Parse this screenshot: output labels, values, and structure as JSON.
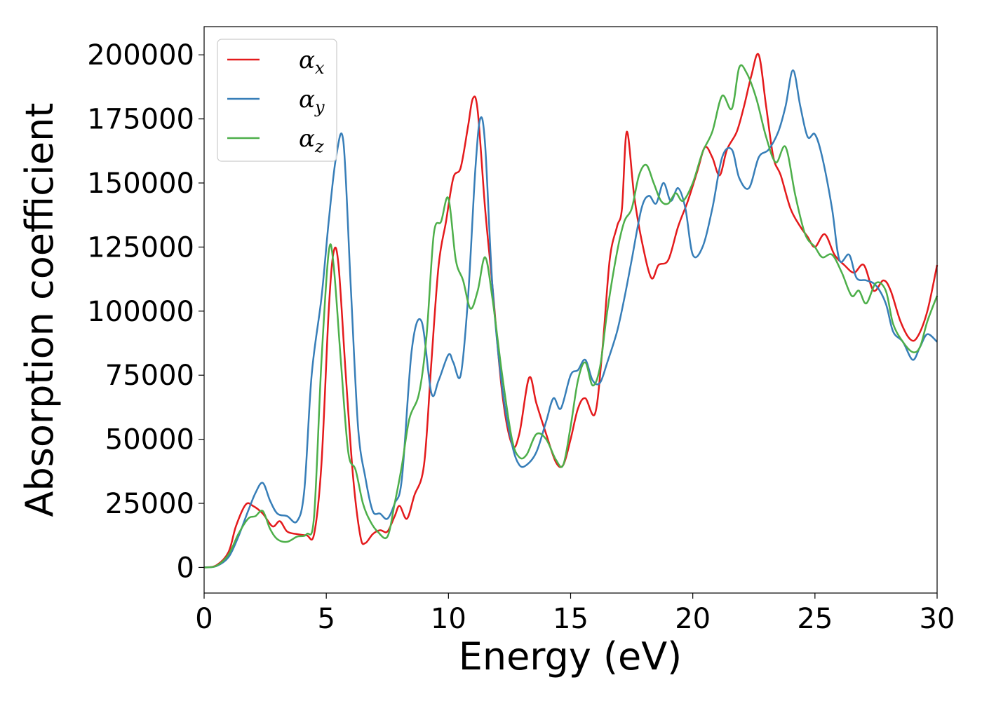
{
  "chart_data": {
    "type": "line",
    "title": "",
    "xlabel": "Energy (eV)",
    "ylabel": "Absorption coefficient",
    "xlim": [
      0,
      30
    ],
    "ylim": [
      -10000,
      211000
    ],
    "xticks": [
      "0",
      "5",
      "10",
      "15",
      "20",
      "25",
      "30"
    ],
    "yticks": [
      "0",
      "25000",
      "50000",
      "75000",
      "100000",
      "125000",
      "150000",
      "175000",
      "200000"
    ],
    "grid": false,
    "legend_position": "top-left",
    "series": [
      {
        "name": "α",
        "subscript": "x",
        "color": "#e41a1c",
        "points": [
          [
            0,
            0
          ],
          [
            0.5,
            800
          ],
          [
            1.0,
            6000
          ],
          [
            1.3,
            16000
          ],
          [
            1.7,
            24500
          ],
          [
            2.0,
            24000
          ],
          [
            2.4,
            21000
          ],
          [
            2.8,
            16000
          ],
          [
            3.1,
            18000
          ],
          [
            3.4,
            14000
          ],
          [
            3.8,
            13000
          ],
          [
            4.2,
            12500
          ],
          [
            4.5,
            13000
          ],
          [
            4.8,
            40000
          ],
          [
            5.1,
            100000
          ],
          [
            5.3,
            123000
          ],
          [
            5.5,
            118000
          ],
          [
            5.8,
            75000
          ],
          [
            6.1,
            35000
          ],
          [
            6.4,
            12000
          ],
          [
            6.6,
            9500
          ],
          [
            6.9,
            13000
          ],
          [
            7.2,
            14500
          ],
          [
            7.5,
            14000
          ],
          [
            7.8,
            20000
          ],
          [
            8.0,
            24000
          ],
          [
            8.3,
            19000
          ],
          [
            8.6,
            28000
          ],
          [
            9.0,
            40000
          ],
          [
            9.3,
            80000
          ],
          [
            9.6,
            118000
          ],
          [
            9.9,
            135000
          ],
          [
            10.2,
            152000
          ],
          [
            10.5,
            156000
          ],
          [
            10.8,
            172000
          ],
          [
            11.0,
            183000
          ],
          [
            11.2,
            178000
          ],
          [
            11.5,
            140000
          ],
          [
            11.8,
            110000
          ],
          [
            12.2,
            68000
          ],
          [
            12.6,
            48000
          ],
          [
            12.9,
            52000
          ],
          [
            13.3,
            74000
          ],
          [
            13.6,
            64000
          ],
          [
            14.0,
            52000
          ],
          [
            14.4,
            41000
          ],
          [
            14.7,
            40000
          ],
          [
            15.0,
            50000
          ],
          [
            15.3,
            62000
          ],
          [
            15.6,
            66000
          ],
          [
            16.0,
            60000
          ],
          [
            16.3,
            85000
          ],
          [
            16.6,
            120000
          ],
          [
            16.9,
            133000
          ],
          [
            17.1,
            140000
          ],
          [
            17.3,
            170000
          ],
          [
            17.6,
            145000
          ],
          [
            17.9,
            128000
          ],
          [
            18.3,
            113000
          ],
          [
            18.6,
            118000
          ],
          [
            19.0,
            120000
          ],
          [
            19.4,
            133000
          ],
          [
            19.8,
            143000
          ],
          [
            20.2,
            155000
          ],
          [
            20.5,
            164000
          ],
          [
            20.8,
            160000
          ],
          [
            21.1,
            153000
          ],
          [
            21.4,
            163000
          ],
          [
            21.8,
            170000
          ],
          [
            22.1,
            180000
          ],
          [
            22.4,
            192000
          ],
          [
            22.7,
            200000
          ],
          [
            23.0,
            180000
          ],
          [
            23.3,
            160000
          ],
          [
            23.6,
            153000
          ],
          [
            24.0,
            140000
          ],
          [
            24.4,
            133000
          ],
          [
            24.7,
            129000
          ],
          [
            25.0,
            125000
          ],
          [
            25.4,
            130000
          ],
          [
            25.8,
            122000
          ],
          [
            26.2,
            118000
          ],
          [
            26.6,
            115000
          ],
          [
            27.0,
            118000
          ],
          [
            27.4,
            108000
          ],
          [
            27.8,
            112000
          ],
          [
            28.1,
            108000
          ],
          [
            28.5,
            96000
          ],
          [
            28.9,
            89000
          ],
          [
            29.2,
            90000
          ],
          [
            29.6,
            100000
          ],
          [
            30.0,
            118000
          ]
        ]
      },
      {
        "name": "α",
        "subscript": "y",
        "color": "#377eb8",
        "points": [
          [
            0,
            0
          ],
          [
            0.5,
            500
          ],
          [
            1.0,
            4000
          ],
          [
            1.4,
            12000
          ],
          [
            1.8,
            22000
          ],
          [
            2.1,
            29000
          ],
          [
            2.4,
            33000
          ],
          [
            2.7,
            26000
          ],
          [
            3.0,
            21000
          ],
          [
            3.4,
            20000
          ],
          [
            3.8,
            18000
          ],
          [
            4.1,
            30000
          ],
          [
            4.4,
            75000
          ],
          [
            4.8,
            105000
          ],
          [
            5.1,
            135000
          ],
          [
            5.4,
            160000
          ],
          [
            5.7,
            166000
          ],
          [
            6.0,
            110000
          ],
          [
            6.3,
            55000
          ],
          [
            6.6,
            35000
          ],
          [
            6.9,
            22000
          ],
          [
            7.2,
            21000
          ],
          [
            7.5,
            19000
          ],
          [
            7.8,
            25000
          ],
          [
            8.1,
            35000
          ],
          [
            8.5,
            85000
          ],
          [
            8.9,
            96000
          ],
          [
            9.3,
            68000
          ],
          [
            9.6,
            73000
          ],
          [
            10.0,
            83000
          ],
          [
            10.2,
            80000
          ],
          [
            10.5,
            75000
          ],
          [
            10.8,
            105000
          ],
          [
            11.1,
            155000
          ],
          [
            11.3,
            175000
          ],
          [
            11.5,
            165000
          ],
          [
            11.8,
            110000
          ],
          [
            12.2,
            70000
          ],
          [
            12.6,
            48000
          ],
          [
            12.9,
            40000
          ],
          [
            13.2,
            40000
          ],
          [
            13.6,
            45000
          ],
          [
            14.0,
            57000
          ],
          [
            14.3,
            66000
          ],
          [
            14.6,
            62000
          ],
          [
            15.0,
            75000
          ],
          [
            15.3,
            77000
          ],
          [
            15.6,
            81000
          ],
          [
            15.9,
            73000
          ],
          [
            16.2,
            72000
          ],
          [
            16.5,
            80000
          ],
          [
            16.9,
            92000
          ],
          [
            17.2,
            105000
          ],
          [
            17.5,
            120000
          ],
          [
            17.9,
            140000
          ],
          [
            18.2,
            145000
          ],
          [
            18.5,
            142000
          ],
          [
            18.8,
            150000
          ],
          [
            19.1,
            143000
          ],
          [
            19.4,
            148000
          ],
          [
            19.7,
            140000
          ],
          [
            20.0,
            122000
          ],
          [
            20.4,
            125000
          ],
          [
            20.8,
            140000
          ],
          [
            21.2,
            160000
          ],
          [
            21.6,
            163000
          ],
          [
            21.9,
            152000
          ],
          [
            22.3,
            148000
          ],
          [
            22.7,
            160000
          ],
          [
            23.1,
            163000
          ],
          [
            23.5,
            170000
          ],
          [
            23.8,
            180000
          ],
          [
            24.1,
            194000
          ],
          [
            24.4,
            180000
          ],
          [
            24.7,
            168000
          ],
          [
            25.0,
            169000
          ],
          [
            25.3,
            160000
          ],
          [
            25.7,
            140000
          ],
          [
            26.0,
            120000
          ],
          [
            26.4,
            122000
          ],
          [
            26.7,
            113000
          ],
          [
            27.1,
            112000
          ],
          [
            27.5,
            110000
          ],
          [
            27.9,
            103000
          ],
          [
            28.2,
            92000
          ],
          [
            28.6,
            88000
          ],
          [
            29.0,
            81000
          ],
          [
            29.3,
            86000
          ],
          [
            29.6,
            91000
          ],
          [
            30.0,
            88000
          ]
        ]
      },
      {
        "name": "α",
        "subscript": "z",
        "color": "#4daf4a",
        "points": [
          [
            0,
            0
          ],
          [
            0.5,
            600
          ],
          [
            1.0,
            5000
          ],
          [
            1.4,
            13000
          ],
          [
            1.8,
            19000
          ],
          [
            2.1,
            20000
          ],
          [
            2.4,
            22000
          ],
          [
            2.7,
            15000
          ],
          [
            3.0,
            11000
          ],
          [
            3.4,
            10000
          ],
          [
            3.8,
            12000
          ],
          [
            4.2,
            13000
          ],
          [
            4.5,
            20000
          ],
          [
            4.8,
            80000
          ],
          [
            5.1,
            123000
          ],
          [
            5.3,
            118000
          ],
          [
            5.6,
            80000
          ],
          [
            5.9,
            45000
          ],
          [
            6.2,
            38000
          ],
          [
            6.5,
            25000
          ],
          [
            6.8,
            18000
          ],
          [
            7.1,
            14000
          ],
          [
            7.5,
            12000
          ],
          [
            7.8,
            25000
          ],
          [
            8.1,
            40000
          ],
          [
            8.4,
            58000
          ],
          [
            8.8,
            68000
          ],
          [
            9.1,
            90000
          ],
          [
            9.4,
            130000
          ],
          [
            9.7,
            135000
          ],
          [
            10.0,
            144000
          ],
          [
            10.3,
            120000
          ],
          [
            10.6,
            112000
          ],
          [
            10.9,
            101000
          ],
          [
            11.2,
            108000
          ],
          [
            11.5,
            121000
          ],
          [
            11.8,
            105000
          ],
          [
            12.2,
            75000
          ],
          [
            12.6,
            50000
          ],
          [
            12.9,
            43000
          ],
          [
            13.2,
            44000
          ],
          [
            13.6,
            52000
          ],
          [
            14.0,
            50000
          ],
          [
            14.4,
            42000
          ],
          [
            14.7,
            40000
          ],
          [
            15.0,
            55000
          ],
          [
            15.3,
            73000
          ],
          [
            15.6,
            80000
          ],
          [
            15.9,
            71000
          ],
          [
            16.2,
            78000
          ],
          [
            16.5,
            100000
          ],
          [
            16.9,
            123000
          ],
          [
            17.2,
            135000
          ],
          [
            17.5,
            140000
          ],
          [
            17.8,
            153000
          ],
          [
            18.1,
            157000
          ],
          [
            18.4,
            150000
          ],
          [
            18.7,
            143000
          ],
          [
            19.0,
            142000
          ],
          [
            19.3,
            146000
          ],
          [
            19.6,
            143000
          ],
          [
            20.0,
            150000
          ],
          [
            20.4,
            162000
          ],
          [
            20.8,
            170000
          ],
          [
            21.2,
            184000
          ],
          [
            21.6,
            179000
          ],
          [
            21.9,
            195000
          ],
          [
            22.2,
            193000
          ],
          [
            22.6,
            183000
          ],
          [
            23.0,
            168000
          ],
          [
            23.4,
            158000
          ],
          [
            23.8,
            164000
          ],
          [
            24.2,
            145000
          ],
          [
            24.6,
            130000
          ],
          [
            25.0,
            125000
          ],
          [
            25.3,
            121000
          ],
          [
            25.7,
            122000
          ],
          [
            26.1,
            115000
          ],
          [
            26.5,
            106000
          ],
          [
            26.8,
            108000
          ],
          [
            27.1,
            103000
          ],
          [
            27.5,
            111000
          ],
          [
            27.9,
            108000
          ],
          [
            28.2,
            95000
          ],
          [
            28.6,
            88000
          ],
          [
            29.0,
            84000
          ],
          [
            29.3,
            86000
          ],
          [
            29.6,
            96000
          ],
          [
            30.0,
            106000
          ]
        ]
      }
    ]
  }
}
